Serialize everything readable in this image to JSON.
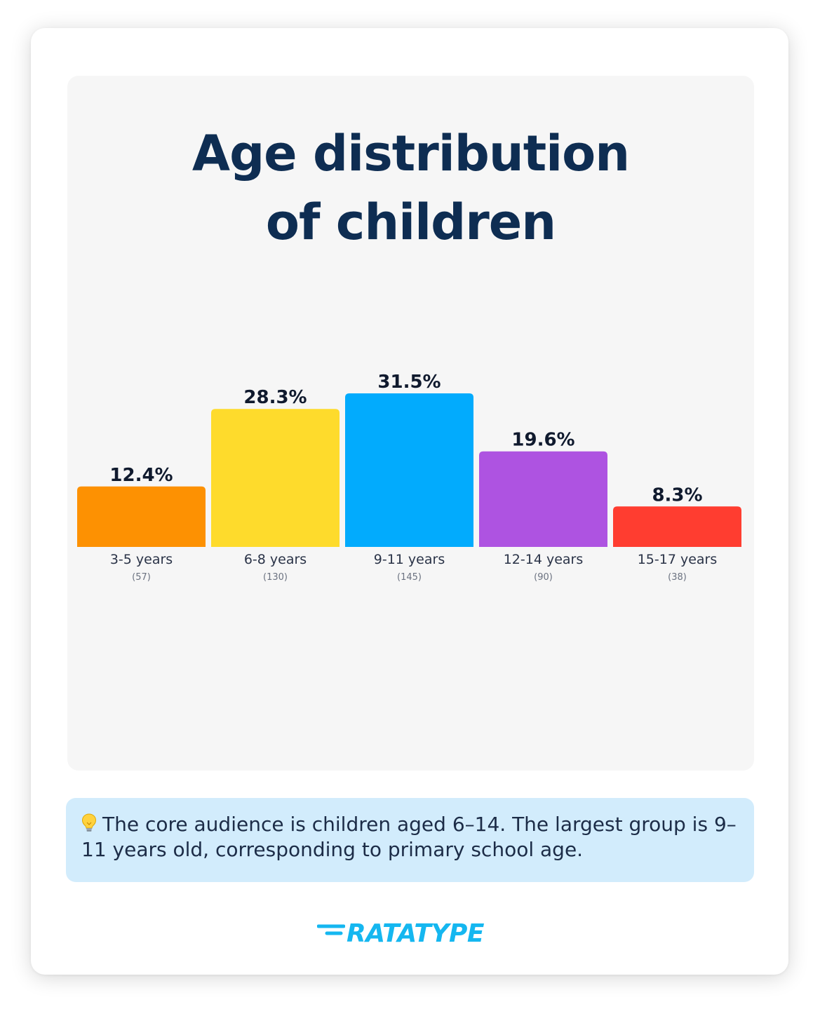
{
  "title_lines": [
    "Age distribution",
    "of children"
  ],
  "chart_data": {
    "type": "bar",
    "title": "Age distribution of children",
    "categories": [
      "3-5 years",
      "6-8 years",
      "9-11 years",
      "12-14 years",
      "15-17 years"
    ],
    "values": [
      12.4,
      28.3,
      31.5,
      19.6,
      8.3
    ],
    "value_labels": [
      "12.4%",
      "28.3%",
      "31.5%",
      "19.6%",
      "8.3%"
    ],
    "counts": [
      "(57)",
      "(130)",
      "(145)",
      "(90)",
      "(38)"
    ],
    "colors": [
      "#fd9102",
      "#fedb2c",
      "#02abfd",
      "#ae53e1",
      "#ff3d30"
    ],
    "ylim": [
      0,
      31.5
    ],
    "grid": false,
    "xlabel": "",
    "ylabel": ""
  },
  "note": {
    "icon": "lightbulb-icon",
    "text": "The core audience is children aged 6–14. The largest group is 9–11 years old, corresponding to primary school age."
  },
  "brand": {
    "name": "RATATYPE",
    "color": "#15b7f0"
  }
}
